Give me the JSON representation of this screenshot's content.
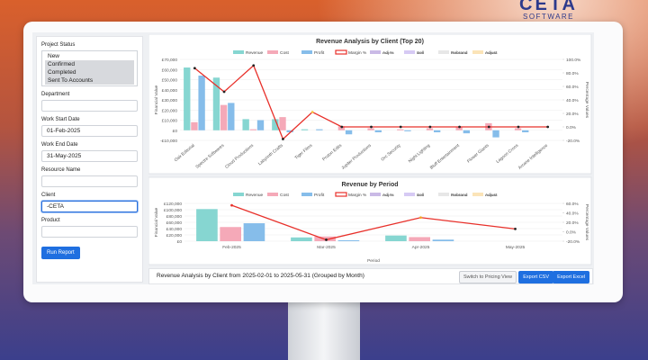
{
  "brand": {
    "name": "CETA",
    "tagline": "SOFTWARE"
  },
  "sidebar": {
    "fields": [
      {
        "label": "Project Status",
        "options": [
          "New",
          "Confirmed",
          "Completed",
          "Sent To Accounts"
        ],
        "selected": [
          false,
          true,
          true,
          true
        ]
      },
      {
        "label": "Department",
        "value": ""
      },
      {
        "label": "Work Start Date",
        "value": "01-Feb-2025"
      },
      {
        "label": "Work End Date",
        "value": "31-May-2025"
      },
      {
        "label": "Resource Name",
        "value": ""
      },
      {
        "label": "Client",
        "value": "-CETA",
        "focused": true
      },
      {
        "label": "Product",
        "value": ""
      }
    ],
    "button": "Run Report"
  },
  "chart_data": [
    {
      "type": "bar",
      "title": "Revenue Analysis by Client (Top 20)",
      "y_label": "Financial Value",
      "y2_label": "Percentage Values",
      "x_label": null,
      "categories": [
        "Oak Editorial",
        "Spectre Softwares",
        "Cloud Productions",
        "Labyrinth Crafts",
        "Tiger Films",
        "Proton Edits",
        "Jupiter Productions",
        "Orc Security",
        "Night Lighting",
        "Bluff Entertainment",
        "Flower Giants",
        "Lagoon Crons",
        "Arcane Intelligence"
      ],
      "series": [
        {
          "name": "Revenue",
          "color": "#86d6d1",
          "values": [
            62000,
            52000,
            11000,
            11000,
            1000,
            0,
            0,
            0,
            0,
            0,
            0,
            0,
            0
          ]
        },
        {
          "name": "Cost",
          "color": "#f5a9b8",
          "values": [
            8000,
            25000,
            1000,
            13000,
            0,
            4000,
            2000,
            1000,
            2000,
            3000,
            7000,
            2000,
            0
          ]
        },
        {
          "name": "Profit",
          "color": "#86bdea",
          "values": [
            54000,
            27000,
            10000,
            -2000,
            1000,
            -4000,
            -2000,
            -1000,
            -2000,
            -3000,
            -7000,
            -2000,
            0
          ]
        },
        {
          "name": "Margin %",
          "color": "#e8302a",
          "kind": "line",
          "axis": "y2",
          "values": [
            87,
            52,
            91,
            -18,
            22,
            0,
            0,
            0,
            0,
            0,
            0,
            0,
            0
          ],
          "point_colors": [
            "#222",
            "#222",
            "#222",
            "#222",
            "#f5c842",
            "#222",
            "#222",
            "#222",
            "#222",
            "#222",
            "#222",
            "#222",
            "#222"
          ]
        },
        {
          "name": "Adj %",
          "color": "#b39ddb",
          "hidden": true,
          "values": [
            null,
            null,
            null,
            null,
            null,
            null,
            null,
            null,
            null,
            null,
            null,
            null,
            null
          ]
        },
        {
          "name": "Sell",
          "color": "#c5b3f0",
          "hidden": true,
          "values": [
            null,
            null,
            null,
            null,
            null,
            null,
            null,
            null,
            null,
            null,
            null,
            null,
            null
          ]
        },
        {
          "name": "Rebrand",
          "color": "#dddddd",
          "hidden": true,
          "values": [
            null,
            null,
            null,
            null,
            null,
            null,
            null,
            null,
            null,
            null,
            null,
            null,
            null
          ]
        },
        {
          "name": "Adjust",
          "color": "#f9d99a",
          "hidden": true,
          "values": [
            null,
            null,
            null,
            null,
            null,
            null,
            null,
            null,
            null,
            null,
            null,
            null,
            null
          ]
        }
      ],
      "ylim": [
        -10000,
        70000
      ],
      "yticks": [
        {
          "value": -10000,
          "label": "-£10,000"
        },
        {
          "value": 0,
          "label": "£0"
        },
        {
          "value": 10000,
          "label": "£10,000"
        },
        {
          "value": 20000,
          "label": "£20,000"
        },
        {
          "value": 30000,
          "label": "£30,000"
        },
        {
          "value": 40000,
          "label": "£40,000"
        },
        {
          "value": 50000,
          "label": "£50,000"
        },
        {
          "value": 60000,
          "label": "£60,000"
        },
        {
          "value": 70000,
          "label": "£70,000"
        }
      ],
      "y2lim": [
        -20,
        100
      ],
      "y2ticks": [
        {
          "value": -20,
          "label": "-20.0%"
        },
        {
          "value": 0,
          "label": "0.0%"
        },
        {
          "value": 20,
          "label": "20.0%"
        },
        {
          "value": 40,
          "label": "40.0%"
        },
        {
          "value": 60,
          "label": "60.0%"
        },
        {
          "value": 80,
          "label": "80.0%"
        },
        {
          "value": 100,
          "label": "100.0%"
        }
      ],
      "grid": true,
      "rotate_labels": true
    },
    {
      "type": "bar",
      "title": "Revenue by Period",
      "y_label": "Financial Value",
      "y2_label": "Percentage Values",
      "x_label": "Period",
      "categories": [
        "Feb-2025",
        "Mar-2025",
        "Apr-2025",
        "May-2025"
      ],
      "series": [
        {
          "name": "Revenue",
          "color": "#86d6d1",
          "values": [
            102000,
            12000,
            18000,
            0
          ]
        },
        {
          "name": "Cost",
          "color": "#f5a9b8",
          "values": [
            45000,
            15000,
            13000,
            0
          ]
        },
        {
          "name": "Profit",
          "color": "#86bdea",
          "values": [
            57000,
            3000,
            5000,
            0
          ]
        },
        {
          "name": "Margin %",
          "color": "#e8302a",
          "kind": "line",
          "axis": "y2",
          "values": [
            56,
            -17,
            30,
            6
          ],
          "point_colors": [
            "#e8302a",
            "#222",
            "#f5a623",
            "#222"
          ]
        },
        {
          "name": "Adj %",
          "color": "#b39ddb",
          "hidden": true,
          "values": [
            null,
            null,
            null,
            null
          ]
        },
        {
          "name": "Sell",
          "color": "#c5b3f0",
          "hidden": true,
          "values": [
            null,
            null,
            null,
            null
          ]
        },
        {
          "name": "Rebrand",
          "color": "#dddddd",
          "hidden": true,
          "values": [
            null,
            null,
            null,
            null
          ]
        },
        {
          "name": "Adjust",
          "color": "#f9d99a",
          "hidden": true,
          "values": [
            null,
            null,
            null,
            null
          ]
        }
      ],
      "ylim": [
        0,
        120000
      ],
      "yticks": [
        {
          "value": 0,
          "label": "£0"
        },
        {
          "value": 20000,
          "label": "£20,000"
        },
        {
          "value": 40000,
          "label": "£40,000"
        },
        {
          "value": 60000,
          "label": "£60,000"
        },
        {
          "value": 80000,
          "label": "£80,000"
        },
        {
          "value": 100000,
          "label": "£100,000"
        },
        {
          "value": 120000,
          "label": "£120,000"
        }
      ],
      "y2lim": [
        -20,
        60
      ],
      "y2ticks": [
        {
          "value": -20,
          "label": "-20.0%"
        },
        {
          "value": 0,
          "label": "0.0%"
        },
        {
          "value": 20,
          "label": "20.0%"
        },
        {
          "value": 40,
          "label": "40.0%"
        },
        {
          "value": 60,
          "label": "60.0%"
        }
      ],
      "grid": true,
      "rotate_labels": false
    }
  ],
  "footer": {
    "summary": "Revenue Analysis by Client from 2025-02-01 to 2025-05-31 (Grouped by Month)",
    "buttons": [
      "Switch to Pricing View",
      "Export CSV",
      "Export Excel"
    ]
  }
}
